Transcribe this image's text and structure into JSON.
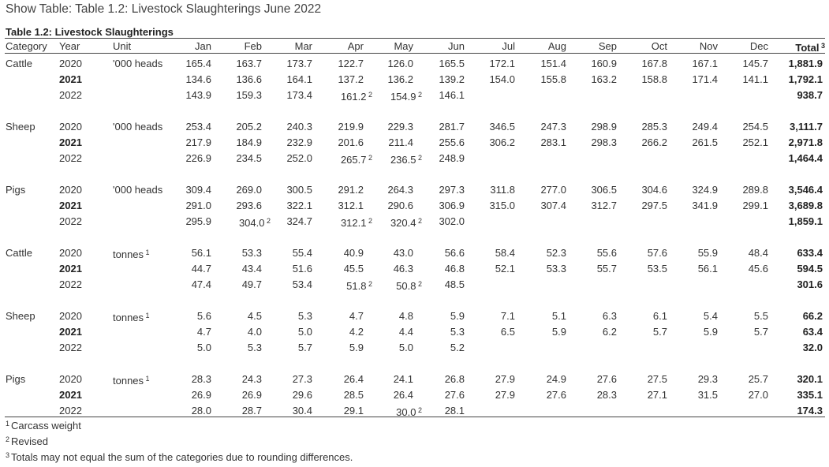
{
  "page_title": "Show Table: Table 1.2: Livestock Slaughterings June 2022",
  "table_caption": "Table 1.2: Livestock Slaughterings",
  "headers": {
    "category": "Category",
    "year": "Year",
    "unit": "Unit",
    "months": [
      "Jan",
      "Feb",
      "Mar",
      "Apr",
      "May",
      "Jun",
      "Jul",
      "Aug",
      "Sep",
      "Oct",
      "Nov",
      "Dec"
    ],
    "total": "Total",
    "total_mark": "3"
  },
  "groups": [
    {
      "category": "Cattle",
      "unit": "'000 heads",
      "unit_mark": "",
      "rows": [
        {
          "year": "2020",
          "bold": false,
          "values": [
            "165.4",
            "163.7",
            "173.7",
            "122.7",
            "126.0",
            "165.5",
            "172.1",
            "151.4",
            "160.9",
            "167.8",
            "167.1",
            "145.7"
          ],
          "marks": [
            "",
            "",
            "",
            "",
            "",
            "",
            "",
            "",
            "",
            "",
            "",
            ""
          ],
          "total": "1,881.9"
        },
        {
          "year": "2021",
          "bold": true,
          "values": [
            "134.6",
            "136.6",
            "164.1",
            "137.2",
            "136.2",
            "139.2",
            "154.0",
            "155.8",
            "163.2",
            "158.8",
            "171.4",
            "141.1"
          ],
          "marks": [
            "",
            "",
            "",
            "",
            "",
            "",
            "",
            "",
            "",
            "",
            "",
            ""
          ],
          "total": "1,792.1"
        },
        {
          "year": "2022",
          "bold": false,
          "values": [
            "143.9",
            "159.3",
            "173.4",
            "161.2",
            "154.9",
            "146.1",
            "",
            "",
            "",
            "",
            "",
            ""
          ],
          "marks": [
            "",
            "",
            "",
            "2",
            "2",
            "",
            "",
            "",
            "",
            "",
            "",
            ""
          ],
          "total": "938.7"
        }
      ]
    },
    {
      "category": "Sheep",
      "unit": "'000 heads",
      "unit_mark": "",
      "rows": [
        {
          "year": "2020",
          "bold": false,
          "values": [
            "253.4",
            "205.2",
            "240.3",
            "219.9",
            "229.3",
            "281.7",
            "346.5",
            "247.3",
            "298.9",
            "285.3",
            "249.4",
            "254.5"
          ],
          "marks": [
            "",
            "",
            "",
            "",
            "",
            "",
            "",
            "",
            "",
            "",
            "",
            ""
          ],
          "total": "3,111.7"
        },
        {
          "year": "2021",
          "bold": true,
          "values": [
            "217.9",
            "184.9",
            "232.9",
            "201.6",
            "211.4",
            "255.6",
            "306.2",
            "283.1",
            "298.3",
            "266.2",
            "261.5",
            "252.1"
          ],
          "marks": [
            "",
            "",
            "",
            "",
            "",
            "",
            "",
            "",
            "",
            "",
            "",
            ""
          ],
          "total": "2,971.8"
        },
        {
          "year": "2022",
          "bold": false,
          "values": [
            "226.9",
            "234.5",
            "252.0",
            "265.7",
            "236.5",
            "248.9",
            "",
            "",
            "",
            "",
            "",
            ""
          ],
          "marks": [
            "",
            "",
            "",
            "2",
            "2",
            "",
            "",
            "",
            "",
            "",
            "",
            ""
          ],
          "total": "1,464.4"
        }
      ]
    },
    {
      "category": "Pigs",
      "unit": "'000 heads",
      "unit_mark": "",
      "rows": [
        {
          "year": "2020",
          "bold": false,
          "values": [
            "309.4",
            "269.0",
            "300.5",
            "291.2",
            "264.3",
            "297.3",
            "311.8",
            "277.0",
            "306.5",
            "304.6",
            "324.9",
            "289.8"
          ],
          "marks": [
            "",
            "",
            "",
            "",
            "",
            "",
            "",
            "",
            "",
            "",
            "",
            ""
          ],
          "total": "3,546.4"
        },
        {
          "year": "2021",
          "bold": true,
          "values": [
            "291.0",
            "293.6",
            "322.1",
            "312.1",
            "290.6",
            "306.9",
            "315.0",
            "307.4",
            "312.7",
            "297.5",
            "341.9",
            "299.1"
          ],
          "marks": [
            "",
            "",
            "",
            "",
            "",
            "",
            "",
            "",
            "",
            "",
            "",
            ""
          ],
          "total": "3,689.8"
        },
        {
          "year": "2022",
          "bold": false,
          "values": [
            "295.9",
            "304.0",
            "324.7",
            "312.1",
            "320.4",
            "302.0",
            "",
            "",
            "",
            "",
            "",
            ""
          ],
          "marks": [
            "",
            "2",
            "",
            "2",
            "2",
            "",
            "",
            "",
            "",
            "",
            "",
            ""
          ],
          "total": "1,859.1"
        }
      ]
    },
    {
      "category": "Cattle",
      "unit": "tonnes",
      "unit_mark": "1",
      "rows": [
        {
          "year": "2020",
          "bold": false,
          "values": [
            "56.1",
            "53.3",
            "55.4",
            "40.9",
            "43.0",
            "56.6",
            "58.4",
            "52.3",
            "55.6",
            "57.6",
            "55.9",
            "48.4"
          ],
          "marks": [
            "",
            "",
            "",
            "",
            "",
            "",
            "",
            "",
            "",
            "",
            "",
            ""
          ],
          "total": "633.4"
        },
        {
          "year": "2021",
          "bold": true,
          "values": [
            "44.7",
            "43.4",
            "51.6",
            "45.5",
            "46.3",
            "46.8",
            "52.1",
            "53.3",
            "55.7",
            "53.5",
            "56.1",
            "45.6"
          ],
          "marks": [
            "",
            "",
            "",
            "",
            "",
            "",
            "",
            "",
            "",
            "",
            "",
            ""
          ],
          "total": "594.5"
        },
        {
          "year": "2022",
          "bold": false,
          "values": [
            "47.4",
            "49.7",
            "53.4",
            "51.8",
            "50.8",
            "48.5",
            "",
            "",
            "",
            "",
            "",
            ""
          ],
          "marks": [
            "",
            "",
            "",
            "2",
            "2",
            "",
            "",
            "",
            "",
            "",
            "",
            ""
          ],
          "total": "301.6"
        }
      ]
    },
    {
      "category": "Sheep",
      "unit": "tonnes",
      "unit_mark": "1",
      "rows": [
        {
          "year": "2020",
          "bold": false,
          "values": [
            "5.6",
            "4.5",
            "5.3",
            "4.7",
            "4.8",
            "5.9",
            "7.1",
            "5.1",
            "6.3",
            "6.1",
            "5.4",
            "5.5"
          ],
          "marks": [
            "",
            "",
            "",
            "",
            "",
            "",
            "",
            "",
            "",
            "",
            "",
            ""
          ],
          "total": "66.2"
        },
        {
          "year": "2021",
          "bold": true,
          "values": [
            "4.7",
            "4.0",
            "5.0",
            "4.2",
            "4.4",
            "5.3",
            "6.5",
            "5.9",
            "6.2",
            "5.7",
            "5.9",
            "5.7"
          ],
          "marks": [
            "",
            "",
            "",
            "",
            "",
            "",
            "",
            "",
            "",
            "",
            "",
            ""
          ],
          "total": "63.4"
        },
        {
          "year": "2022",
          "bold": false,
          "values": [
            "5.0",
            "5.3",
            "5.7",
            "5.9",
            "5.0",
            "5.2",
            "",
            "",
            "",
            "",
            "",
            ""
          ],
          "marks": [
            "",
            "",
            "",
            "",
            "",
            "",
            "",
            "",
            "",
            "",
            "",
            ""
          ],
          "total": "32.0"
        }
      ]
    },
    {
      "category": "Pigs",
      "unit": "tonnes",
      "unit_mark": "1",
      "rows": [
        {
          "year": "2020",
          "bold": false,
          "values": [
            "28.3",
            "24.3",
            "27.3",
            "26.4",
            "24.1",
            "26.8",
            "27.9",
            "24.9",
            "27.6",
            "27.5",
            "29.3",
            "25.7"
          ],
          "marks": [
            "",
            "",
            "",
            "",
            "",
            "",
            "",
            "",
            "",
            "",
            "",
            ""
          ],
          "total": "320.1"
        },
        {
          "year": "2021",
          "bold": true,
          "values": [
            "26.9",
            "26.9",
            "29.6",
            "28.5",
            "26.4",
            "27.6",
            "27.9",
            "27.6",
            "28.3",
            "27.1",
            "31.5",
            "27.0"
          ],
          "marks": [
            "",
            "",
            "",
            "",
            "",
            "",
            "",
            "",
            "",
            "",
            "",
            ""
          ],
          "total": "335.1"
        },
        {
          "year": "2022",
          "bold": false,
          "values": [
            "28.0",
            "28.7",
            "30.4",
            "29.1",
            "30.0",
            "28.1",
            "",
            "",
            "",
            "",
            "",
            ""
          ],
          "marks": [
            "",
            "",
            "",
            "",
            "2",
            "",
            "",
            "",
            "",
            "",
            "",
            ""
          ],
          "total": "174.3"
        }
      ]
    }
  ],
  "footnotes": [
    {
      "mark": "1",
      "text": "Carcass weight"
    },
    {
      "mark": "2",
      "text": "Revised"
    },
    {
      "mark": "3",
      "text": "Totals may not equal the sum of the categories due to rounding differences."
    }
  ]
}
